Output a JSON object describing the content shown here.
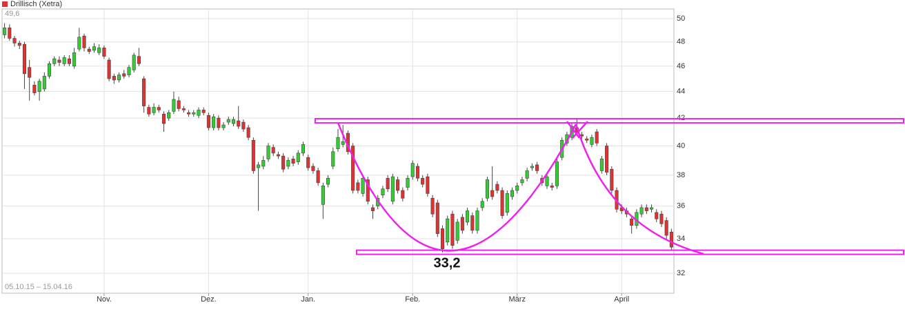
{
  "chart_data": {
    "type": "candlestick",
    "title": "Drillisch (Xetra)",
    "max_label": "49,6",
    "range_label": "05.10.15 – 15.04.16",
    "log_y": true,
    "grid": true,
    "up_color": "#33cc33",
    "down_color": "#dd3333",
    "ylim": [
      30.9,
      50.85
    ],
    "yticks": [
      32,
      34,
      36,
      38,
      40,
      42,
      44,
      46,
      48,
      50
    ],
    "xlim": [
      -0.5,
      134.5
    ],
    "xticks": [
      {
        "value": 20,
        "label": "Nov."
      },
      {
        "value": 41,
        "label": "Dez."
      },
      {
        "value": 61,
        "label": "Jan."
      },
      {
        "value": 82,
        "label": "Feb."
      },
      {
        "value": 103,
        "label": "März"
      },
      {
        "value": 124,
        "label": "April"
      }
    ],
    "open": [
      48.6,
      49.2,
      48.3,
      47.9,
      47.8,
      45.9,
      44.5,
      44.0,
      44.2,
      45.2,
      46.2,
      46.5,
      46.2,
      46.6,
      46.0,
      47.4,
      48.5,
      47.4,
      47.3,
      47.1,
      47.5,
      46.5,
      45.2,
      44.9,
      45.4,
      45.3,
      45.7,
      46.8,
      45.0,
      42.8,
      42.4,
      42.8,
      42.3,
      42.0,
      42.5,
      43.3,
      42.7,
      42.4,
      42.3,
      42.2,
      42.6,
      42.2,
      41.3,
      42.0,
      41.3,
      41.7,
      41.6,
      41.8,
      41.7,
      41.3,
      40.4,
      38.5,
      38.6,
      39.1,
      39.9,
      39.4,
      39.3,
      38.6,
      39.1,
      38.9,
      39.5,
      39.2,
      38.6,
      38.3,
      36.1,
      37.4,
      38.6,
      39.8,
      40.1,
      40.9,
      40.0,
      37.5,
      36.8,
      37.7,
      35.9,
      36.0,
      36.7,
      37.8,
      36.3,
      37.7,
      37.0,
      37.2,
      37.9,
      38.6,
      37.8,
      37.9,
      36.5,
      36.2,
      34.6,
      33.8,
      35.5,
      33.9,
      35.3,
      35.0,
      35.4,
      34.5,
      35.9,
      36.5,
      37.0,
      37.4,
      37.0,
      35.6,
      36.6,
      37.0,
      37.5,
      37.8,
      38.5,
      38.7,
      37.8,
      37.3,
      37.3,
      37.3,
      39.2,
      40.2,
      40.6,
      41.3,
      40.8,
      40.5,
      40.1,
      41.0,
      38.3,
      40.0,
      38.4,
      37.0,
      35.9,
      35.7,
      35.2,
      34.8,
      35.5,
      35.9,
      35.8,
      35.6,
      35.5,
      35.1,
      34.4
    ],
    "high": [
      49.6,
      49.5,
      48.5,
      48.1,
      48.0,
      46.5,
      44.8,
      45.0,
      45.5,
      46.4,
      46.8,
      46.8,
      46.9,
      46.9,
      47.5,
      49.2,
      48.7,
      47.6,
      47.9,
      47.8,
      47.7,
      46.7,
      45.4,
      45.5,
      45.7,
      46.1,
      47.1,
      47.5,
      45.2,
      43.0,
      43.1,
      43.0,
      42.5,
      42.6,
      44.0,
      43.6,
      42.9,
      42.6,
      42.6,
      42.8,
      42.8,
      42.4,
      42.3,
      42.2,
      41.7,
      42.1,
      42.1,
      42.9,
      41.9,
      41.5,
      40.6,
      38.9,
      39.3,
      40.2,
      40.1,
      39.6,
      39.5,
      39.2,
      39.3,
      39.7,
      40.3,
      39.4,
      38.8,
      38.5,
      37.5,
      38.0,
      39.9,
      41.2,
      41.5,
      41.1,
      40.2,
      37.7,
      38.0,
      37.9,
      36.1,
      36.7,
      37.3,
      38.0,
      38.1,
      37.9,
      37.2,
      38.0,
      39.0,
      38.8,
      38.0,
      38.1,
      36.7,
      36.4,
      34.8,
      35.4,
      35.7,
      35.2,
      35.5,
      35.9,
      35.6,
      35.9,
      36.5,
      37.9,
      38.6,
      37.6,
      37.2,
      37.0,
      37.2,
      37.5,
      37.9,
      38.5,
      38.8,
      38.9,
      38.0,
      38.1,
      37.5,
      39.1,
      40.6,
      41.0,
      41.6,
      42.0,
      41.0,
      40.7,
      40.8,
      41.2,
      39.3,
      40.2,
      38.6,
      37.2,
      36.1,
      35.9,
      35.4,
      35.8,
      36.1,
      36.1,
      36.1,
      35.8,
      35.7,
      35.3,
      34.6
    ],
    "low": [
      48.3,
      48.1,
      47.6,
      47.4,
      44.2,
      43.3,
      43.7,
      43.3,
      44.0,
      45.0,
      46.0,
      46.0,
      46.0,
      46.0,
      45.8,
      47.2,
      47.2,
      47.0,
      47.1,
      46.9,
      46.6,
      44.8,
      44.6,
      44.7,
      45.0,
      45.1,
      45.5,
      46.0,
      42.4,
      42.1,
      42.2,
      42.4,
      41.0,
      41.8,
      42.3,
      42.5,
      42.4,
      42.1,
      42.1,
      42.0,
      42.2,
      41.1,
      41.1,
      41.1,
      41.1,
      41.5,
      41.4,
      41.2,
      41.0,
      40.4,
      38.1,
      35.7,
      38.4,
      38.9,
      39.3,
      39.1,
      38.2,
      38.4,
      38.6,
      38.7,
      39.3,
      38.3,
      38.1,
      37.3,
      35.2,
      37.2,
      38.4,
      39.6,
      39.9,
      39.4,
      36.8,
      36.8,
      36.6,
      36.1,
      35.2,
      35.8,
      36.5,
      36.9,
      36.1,
      36.8,
      36.3,
      37.0,
      37.7,
      37.6,
      37.2,
      36.6,
      35.3,
      34.1,
      33.2,
      33.6,
      33.4,
      33.7,
      34.3,
      34.8,
      34.3,
      34.3,
      35.7,
      36.3,
      36.4,
      36.8,
      35.2,
      35.4,
      36.4,
      36.8,
      37.3,
      37.6,
      38.3,
      38.1,
      37.3,
      37.1,
      37.0,
      37.1,
      39.0,
      40.0,
      40.4,
      40.8,
      40.5,
      40.2,
      39.9,
      40.0,
      38.1,
      38.0,
      36.8,
      35.6,
      35.5,
      35.3,
      34.3,
      34.6,
      35.3,
      35.5,
      35.6,
      35.0,
      34.7,
      34.0,
      33.3
    ],
    "close": [
      49.2,
      48.3,
      47.9,
      47.7,
      45.4,
      45.1,
      43.9,
      44.8,
      45.2,
      46.2,
      46.6,
      46.3,
      46.7,
      46.2,
      47.1,
      48.4,
      47.5,
      47.2,
      47.6,
      47.5,
      46.8,
      45.0,
      44.9,
      45.3,
      45.2,
      45.9,
      46.9,
      46.2,
      42.9,
      42.3,
      42.8,
      42.6,
      41.6,
      42.4,
      43.4,
      42.7,
      42.6,
      42.3,
      42.4,
      42.6,
      42.4,
      41.3,
      42.1,
      41.3,
      41.5,
      41.9,
      41.9,
      41.4,
      41.2,
      40.6,
      38.3,
      38.7,
      39.0,
      40.0,
      39.5,
      39.3,
      38.4,
      39.0,
      38.8,
      39.5,
      40.1,
      38.5,
      38.3,
      37.5,
      37.3,
      37.8,
      39.6,
      40.6,
      40.3,
      39.6,
      37.0,
      37.0,
      37.8,
      36.3,
      35.7,
      36.5,
      37.1,
      37.1,
      37.9,
      37.0,
      36.5,
      37.8,
      38.8,
      37.8,
      37.4,
      36.8,
      35.5,
      34.3,
      33.4,
      35.2,
      33.6,
      35.0,
      34.5,
      35.7,
      34.5,
      35.7,
      36.3,
      37.7,
      36.6,
      37.0,
      35.4,
      36.8,
      37.0,
      37.3,
      37.7,
      38.3,
      38.6,
      38.3,
      37.5,
      37.9,
      37.2,
      38.9,
      40.4,
      40.8,
      41.4,
      41.0,
      40.7,
      40.4,
      40.6,
      40.2,
      39.1,
      38.2,
      37.0,
      35.8,
      35.7,
      35.5,
      34.8,
      35.6,
      35.9,
      35.7,
      35.9,
      35.2,
      34.9,
      34.2,
      33.5
    ],
    "levels": [
      41.8,
      33.2
    ],
    "level_label": "33,2"
  }
}
